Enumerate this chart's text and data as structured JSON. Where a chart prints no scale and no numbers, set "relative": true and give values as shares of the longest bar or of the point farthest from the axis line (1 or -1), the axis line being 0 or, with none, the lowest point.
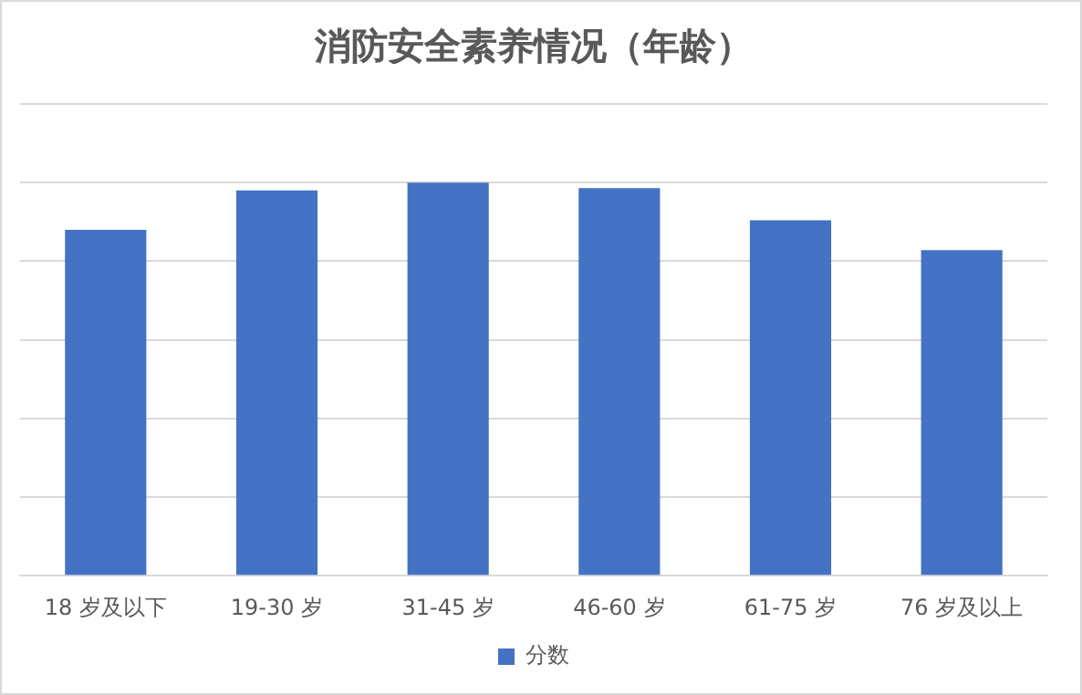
{
  "chart_data": {
    "type": "bar",
    "title": "消防安全素养情况（年龄）",
    "categories": [
      "18 岁及以下",
      "19-30 岁",
      "31-45 岁",
      "46-60 岁",
      "61-75 岁",
      "76 岁及以上"
    ],
    "series": [
      {
        "name": "分数",
        "color": "#4472c4",
        "values": [
          0.88,
          0.98,
          1,
          0.986,
          0.904,
          0.828
        ]
      }
    ],
    "relative": true,
    "grid": "y",
    "legend": "bottom"
  }
}
